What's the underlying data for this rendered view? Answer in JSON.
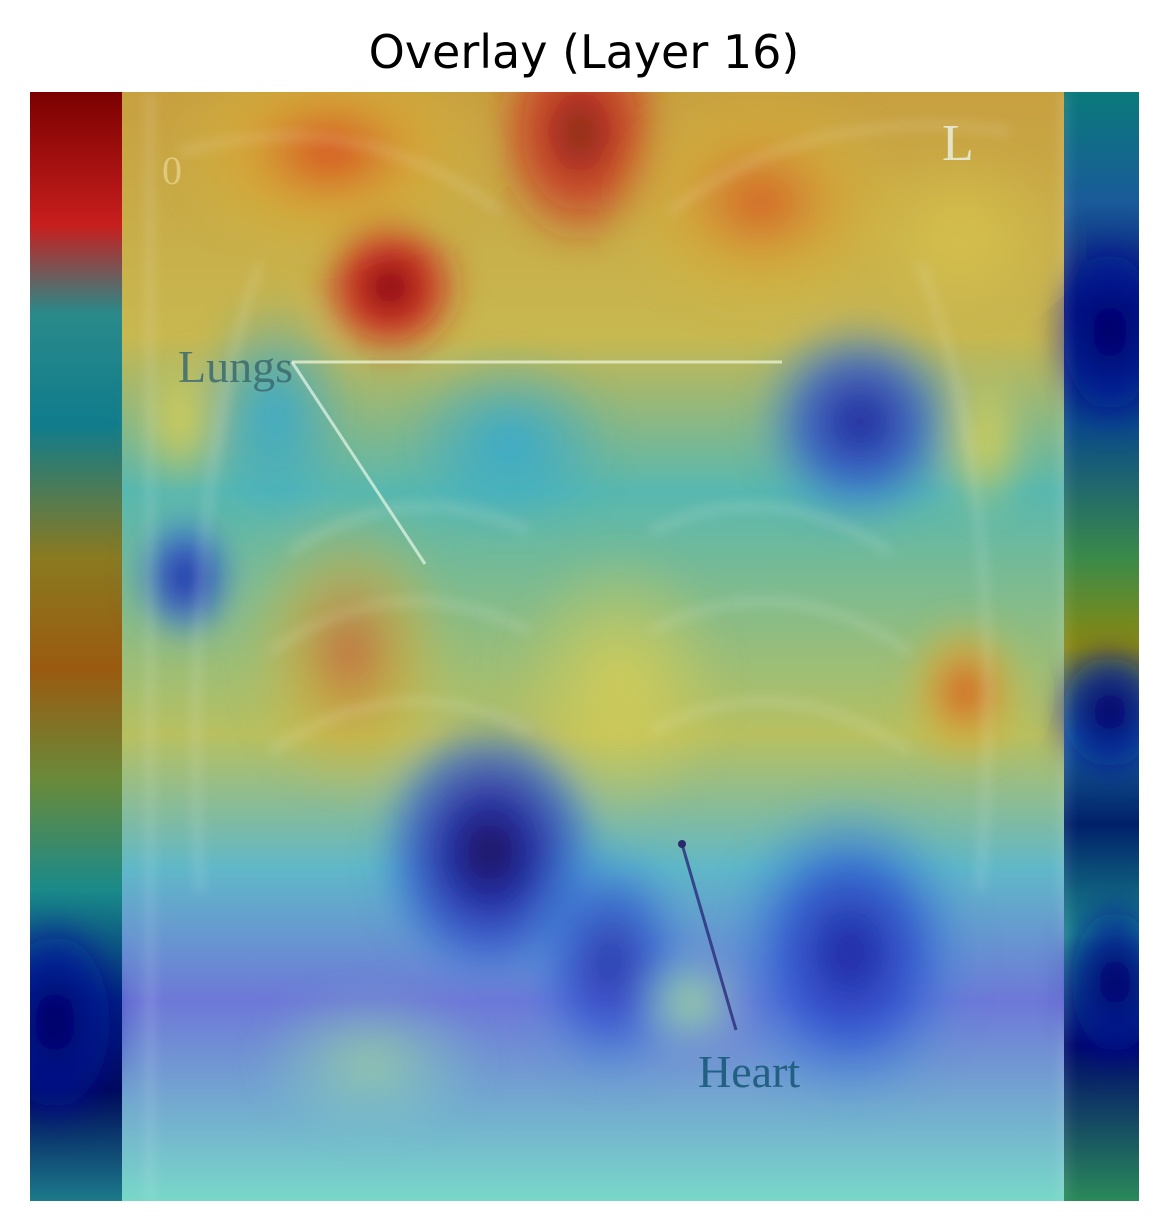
{
  "title": "Overlay (Layer 16)",
  "image": {
    "labels": {
      "lungs": "Lungs",
      "heart": "Heart",
      "side_marker": "L",
      "corner_marker": "0"
    },
    "colormap": "jet"
  },
  "colors": {
    "hot_red": "#8b0000",
    "red": "#d21e1e",
    "orange": "#c86e14",
    "yellow": "#d2d250",
    "cyan": "#50d2d2",
    "blue": "#2846d2",
    "navy": "#000a5a",
    "teal": "#007a7a"
  }
}
